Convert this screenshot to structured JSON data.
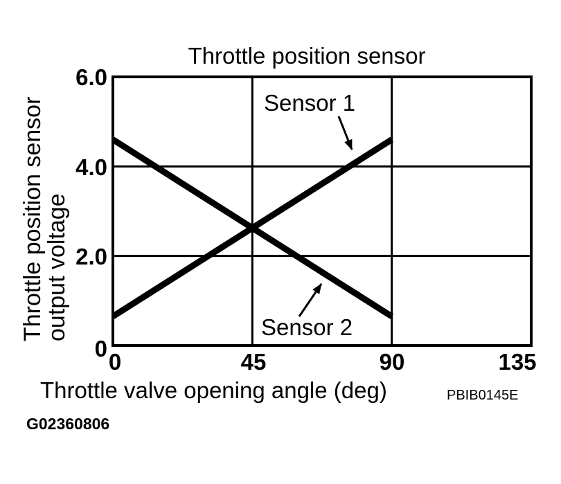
{
  "figure": {
    "image_code": "PBIB0145E",
    "figure_id": "G02360806"
  },
  "chart_data": {
    "type": "line",
    "title": "Throttle position sensor",
    "xlabel": "Throttle valve opening angle (deg)",
    "ylabel": "Throttle position sensor output voltage",
    "ylabel_line1": "Throttle position sensor",
    "ylabel_line2": "output voltage",
    "xlim": [
      0,
      135
    ],
    "ylim": [
      0,
      6
    ],
    "xticks": [
      "0",
      "45",
      "90",
      "135"
    ],
    "yticks": [
      "0",
      "2.0",
      "4.0",
      "6.0"
    ],
    "grid": true,
    "legend_position": "inline-annotations",
    "line_color": "#000000",
    "background": "#ffffff",
    "series": [
      {
        "name": "Sensor 1",
        "points": [
          [
            0,
            0.65
          ],
          [
            90,
            4.6
          ]
        ]
      },
      {
        "name": "Sensor 2",
        "points": [
          [
            0,
            4.6
          ],
          [
            90,
            0.65
          ]
        ]
      }
    ],
    "annotations": [
      {
        "text": "Sensor 1",
        "target_series": "Sensor 1"
      },
      {
        "text": "Sensor 2",
        "target_series": "Sensor 2"
      }
    ]
  }
}
